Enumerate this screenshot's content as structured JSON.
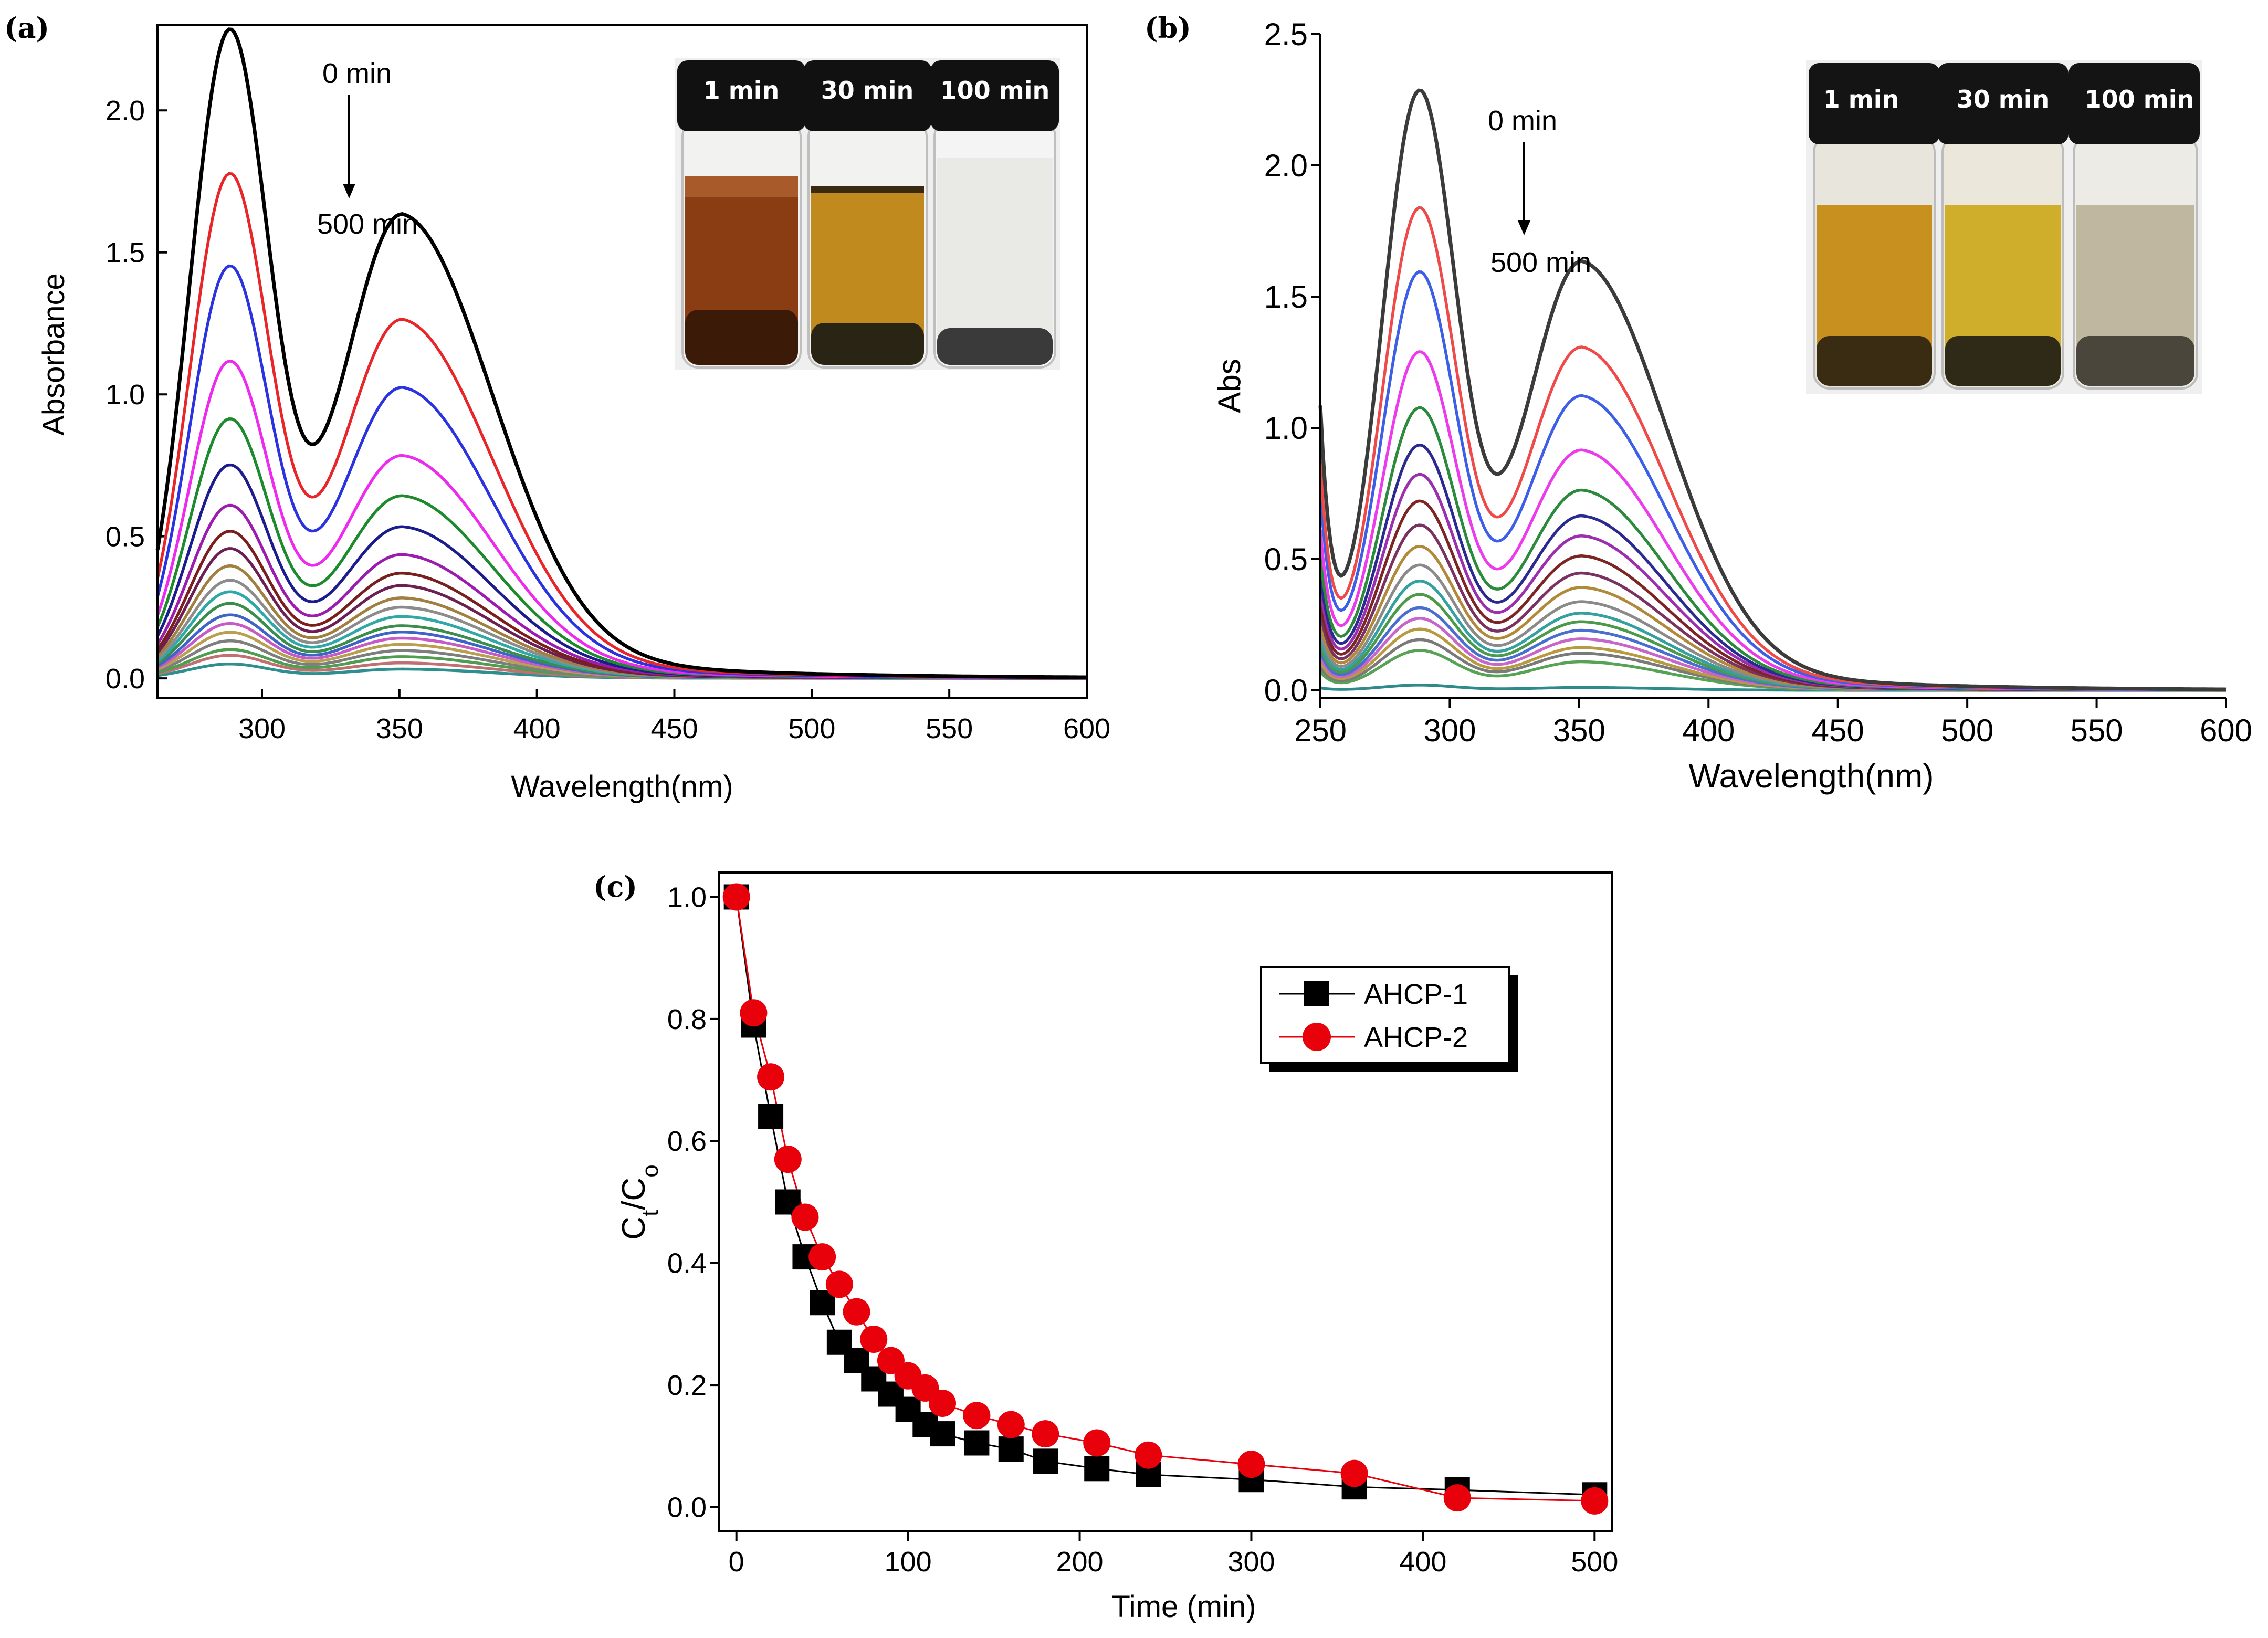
{
  "chart_data": [
    {
      "panel": "(a)",
      "type": "line",
      "xlabel": "Wavelength(nm)",
      "ylabel": "Absorbance",
      "xlim": [
        262,
        600
      ],
      "ylim": [
        -0.07,
        2.3
      ],
      "xticks": [
        300,
        350,
        400,
        450,
        500,
        550,
        600
      ],
      "yticks": [
        0.0,
        0.5,
        1.0,
        1.5,
        2.0
      ],
      "ytick_decimals": 1,
      "annotations": {
        "start": "0 min",
        "end": "500 min"
      },
      "peak1_nm": 288,
      "peak2_nm": 351,
      "series": [
        {
          "color": "#000000",
          "peak1": 2.25,
          "peak2": 1.5
        },
        {
          "color": "#e8262a",
          "peak1": 1.75,
          "peak2": 1.16
        },
        {
          "color": "#2b33e0",
          "peak1": 1.43,
          "peak2": 0.94
        },
        {
          "color": "#ee2aee",
          "peak1": 1.1,
          "peak2": 0.72
        },
        {
          "color": "#1d8a2e",
          "peak1": 0.9,
          "peak2": 0.59
        },
        {
          "color": "#1c1c8c",
          "peak1": 0.74,
          "peak2": 0.49
        },
        {
          "color": "#9b1cae",
          "peak1": 0.6,
          "peak2": 0.4
        },
        {
          "color": "#7a1e1e",
          "peak1": 0.51,
          "peak2": 0.34
        },
        {
          "color": "#6b1f52",
          "peak1": 0.45,
          "peak2": 0.3
        },
        {
          "color": "#a07f3f",
          "peak1": 0.39,
          "peak2": 0.26
        },
        {
          "color": "#8c8c8c",
          "peak1": 0.34,
          "peak2": 0.23
        },
        {
          "color": "#2fa8a8",
          "peak1": 0.3,
          "peak2": 0.2
        },
        {
          "color": "#3a8d4a",
          "peak1": 0.26,
          "peak2": 0.17
        },
        {
          "color": "#3f64c8",
          "peak1": 0.22,
          "peak2": 0.15
        },
        {
          "color": "#c65ac6",
          "peak1": 0.19,
          "peak2": 0.13
        },
        {
          "color": "#b8a050",
          "peak1": 0.16,
          "peak2": 0.11
        },
        {
          "color": "#7e7e7e",
          "peak1": 0.13,
          "peak2": 0.09
        },
        {
          "color": "#4f9e4f",
          "peak1": 0.1,
          "peak2": 0.07
        },
        {
          "color": "#c07070",
          "peak1": 0.08,
          "peak2": 0.05
        },
        {
          "color": "#2e8f8f",
          "peak1": 0.05,
          "peak2": 0.03
        }
      ],
      "inset_labels": [
        "1 min",
        "30 min",
        "100 min"
      ]
    },
    {
      "panel": "(b)",
      "type": "line",
      "xlabel": "Wavelength(nm)",
      "ylabel": "Abs",
      "xlim": [
        250,
        600
      ],
      "ylim": [
        -0.03,
        2.5
      ],
      "xticks": [
        250,
        300,
        350,
        400,
        450,
        500,
        550,
        600
      ],
      "yticks": [
        0.0,
        0.5,
        1.0,
        1.5,
        2.0,
        2.5
      ],
      "ytick_decimals": 1,
      "annotations": {
        "start": "0 min",
        "end": "500 min"
      },
      "peak1_nm": 288,
      "peak2_nm": 351,
      "series": [
        {
          "color": "#3b3b3b",
          "peak1": 2.25,
          "peak2": 1.5
        },
        {
          "color": "#ef4a4a",
          "peak1": 1.81,
          "peak2": 1.2
        },
        {
          "color": "#3d5ee6",
          "peak1": 1.57,
          "peak2": 1.03
        },
        {
          "color": "#ec3bec",
          "peak1": 1.27,
          "peak2": 0.84
        },
        {
          "color": "#2c8a3c",
          "peak1": 1.06,
          "peak2": 0.7
        },
        {
          "color": "#2a2a90",
          "peak1": 0.92,
          "peak2": 0.61
        },
        {
          "color": "#9c2fb0",
          "peak1": 0.81,
          "peak2": 0.54
        },
        {
          "color": "#7d2424",
          "peak1": 0.71,
          "peak2": 0.47
        },
        {
          "color": "#7a3260",
          "peak1": 0.62,
          "peak2": 0.41
        },
        {
          "color": "#b08a3a",
          "peak1": 0.54,
          "peak2": 0.36
        },
        {
          "color": "#8a8a8a",
          "peak1": 0.47,
          "peak2": 0.31
        },
        {
          "color": "#34a0a0",
          "peak1": 0.41,
          "peak2": 0.27
        },
        {
          "color": "#4a9a4a",
          "peak1": 0.36,
          "peak2": 0.24
        },
        {
          "color": "#4a6ed0",
          "peak1": 0.31,
          "peak2": 0.21
        },
        {
          "color": "#c865c8",
          "peak1": 0.27,
          "peak2": 0.18
        },
        {
          "color": "#b89a40",
          "peak1": 0.23,
          "peak2": 0.15
        },
        {
          "color": "#7a7a7a",
          "peak1": 0.19,
          "peak2": 0.13
        },
        {
          "color": "#56a356",
          "peak1": 0.15,
          "peak2": 0.1
        },
        {
          "color": "#2e8b8b",
          "peak1": 0.02,
          "peak2": 0.01
        }
      ],
      "inset_labels": [
        "1 min",
        "30 min",
        "100 min"
      ]
    },
    {
      "panel": "(c)",
      "type": "scatter",
      "xlabel": "Time (min)",
      "ylabel_main": "C",
      "ylabel_sub1": "t",
      "ylabel_mid": "/C",
      "ylabel_sub2": "o",
      "xlim": [
        -10,
        510
      ],
      "ylim": [
        -0.04,
        1.04
      ],
      "xticks": [
        0,
        100,
        200,
        300,
        400,
        500
      ],
      "yticks": [
        0.0,
        0.2,
        0.4,
        0.6,
        0.8,
        1.0
      ],
      "ytick_decimals": 1,
      "legend_position": "top-right",
      "series": [
        {
          "name": "AHCP-1",
          "marker": "square",
          "color": "#000000",
          "x": [
            0,
            10,
            20,
            30,
            40,
            50,
            60,
            70,
            80,
            90,
            100,
            110,
            120,
            140,
            160,
            180,
            210,
            240,
            300,
            360,
            420,
            500
          ],
          "y": [
            1.0,
            0.79,
            0.64,
            0.5,
            0.41,
            0.335,
            0.27,
            0.24,
            0.21,
            0.185,
            0.16,
            0.135,
            0.12,
            0.105,
            0.095,
            0.075,
            0.063,
            0.053,
            0.045,
            0.033,
            0.028,
            0.02
          ]
        },
        {
          "name": "AHCP-2",
          "marker": "circle",
          "color": "#e8000b",
          "x": [
            0,
            10,
            20,
            30,
            40,
            50,
            60,
            70,
            80,
            90,
            100,
            110,
            120,
            140,
            160,
            180,
            210,
            240,
            300,
            360,
            420,
            500
          ],
          "y": [
            1.0,
            0.81,
            0.705,
            0.57,
            0.475,
            0.41,
            0.365,
            0.32,
            0.275,
            0.24,
            0.215,
            0.195,
            0.17,
            0.15,
            0.135,
            0.12,
            0.105,
            0.085,
            0.07,
            0.055,
            0.015,
            0.01
          ]
        }
      ]
    }
  ]
}
